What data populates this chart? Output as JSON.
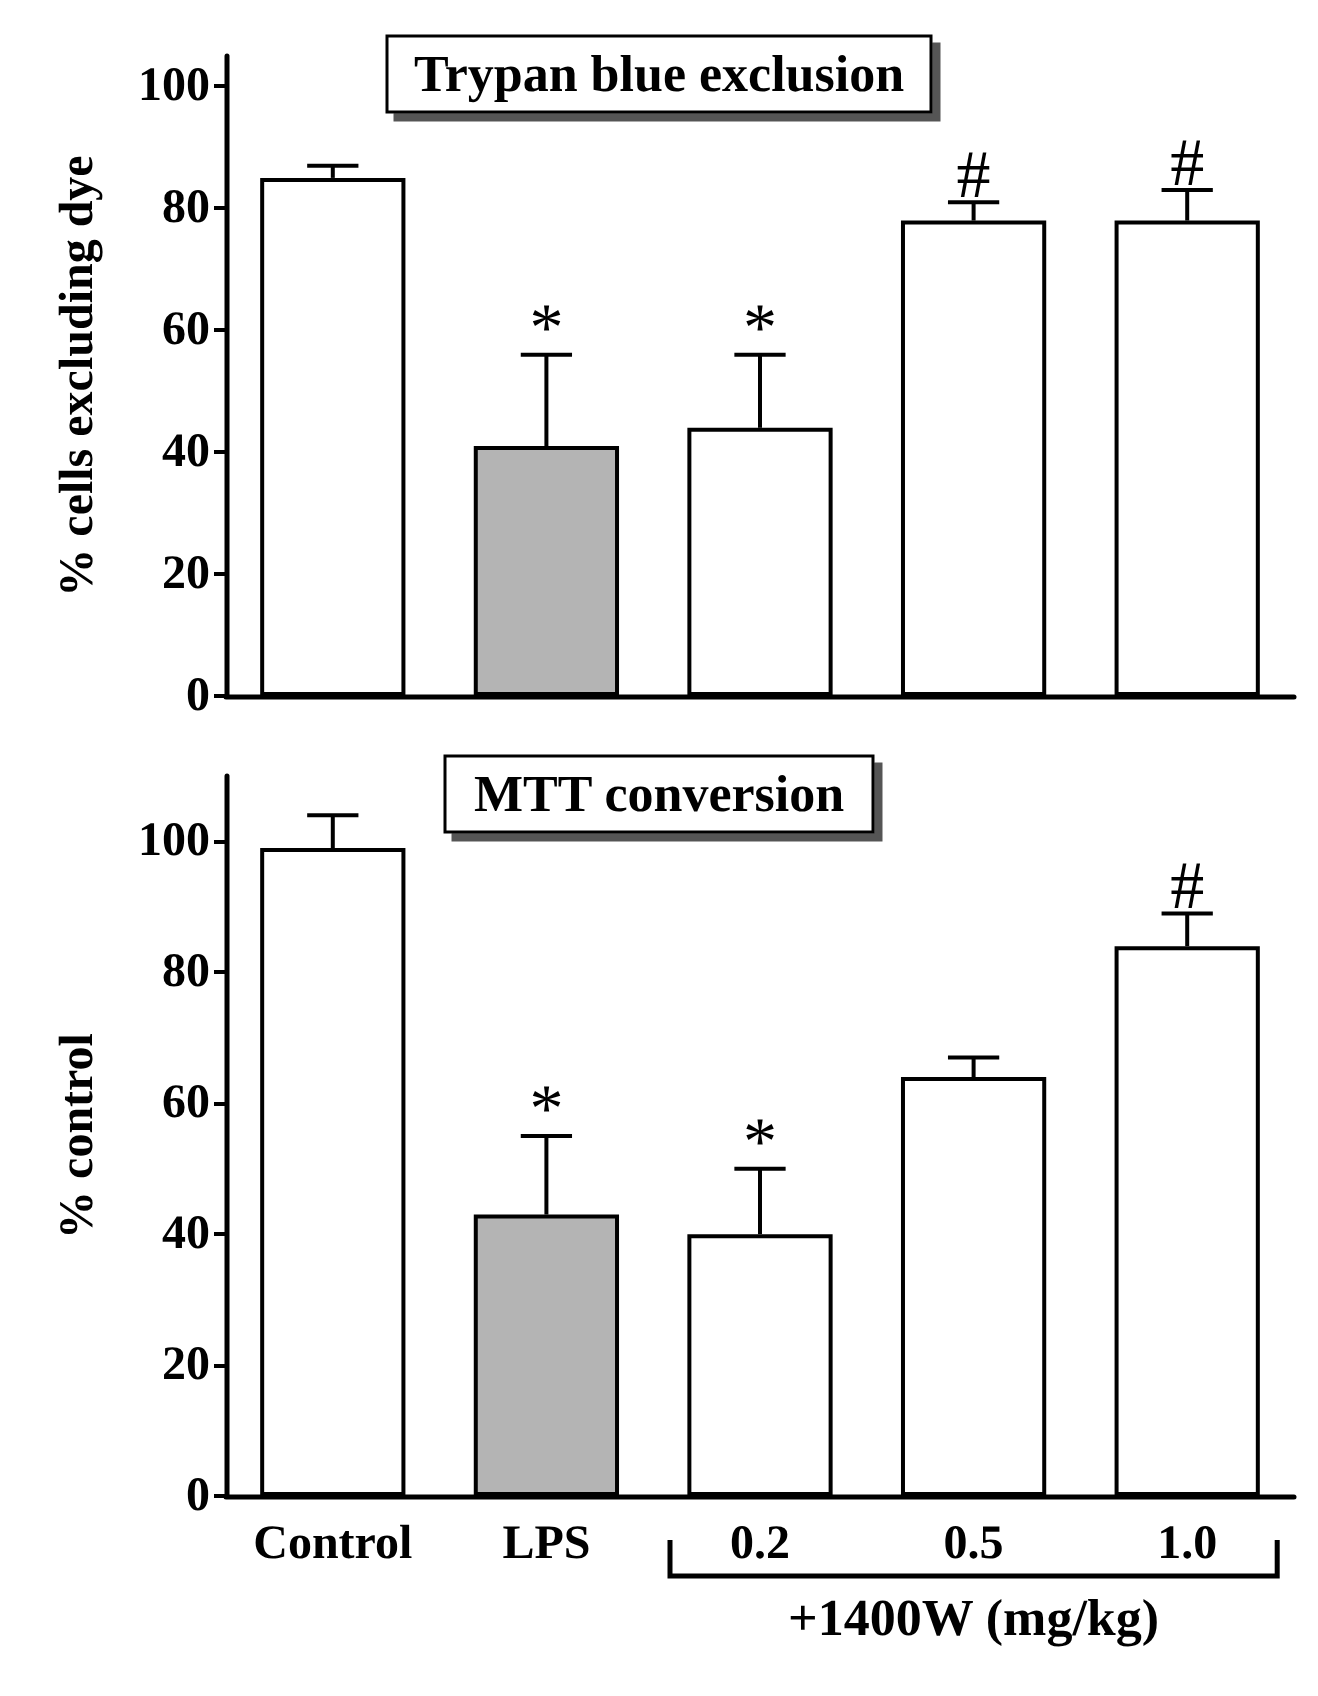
{
  "chart_data": [
    {
      "type": "bar",
      "title": "Trypan blue exclusion",
      "ylabel": "% cells excluding dye",
      "categories": [
        null,
        null,
        null,
        null,
        null
      ],
      "values": [
        85,
        41,
        44,
        78,
        78
      ],
      "colors": [
        "#ffffff",
        "#b4b4b4",
        "#ffffff",
        "#ffffff",
        "#ffffff"
      ],
      "errors": [
        [
          85,
          87
        ],
        [
          41,
          56
        ],
        [
          44,
          56
        ],
        [
          78,
          81
        ],
        [
          78,
          83
        ]
      ],
      "value_labels": [
        null,
        "*",
        "*",
        "#",
        "#"
      ],
      "ylim": [
        0,
        105
      ],
      "yticks": [
        0,
        20,
        40,
        60,
        80,
        100
      ],
      "tick_labels": "y"
    },
    {
      "type": "bar",
      "title": "MTT conversion",
      "ylabel": "% control",
      "categories": [
        "Control",
        "LPS",
        "0.2",
        "0.5",
        "1.0"
      ],
      "values": [
        99,
        43,
        40,
        64,
        84
      ],
      "colors": [
        "#ffffff",
        "#b4b4b4",
        "#ffffff",
        "#ffffff",
        "#ffffff"
      ],
      "errors": [
        [
          99,
          104
        ],
        [
          43,
          55
        ],
        [
          40,
          50
        ],
        [
          64,
          67
        ],
        [
          84,
          89
        ]
      ],
      "ylim": [
        0,
        110
      ],
      "yticks": [
        0,
        20,
        40,
        60,
        80,
        100
      ],
      "value_labels": [
        null,
        "*",
        "*",
        null,
        "#"
      ],
      "annotations": [
        "+1400W (mg/kg)"
      ]
    }
  ]
}
